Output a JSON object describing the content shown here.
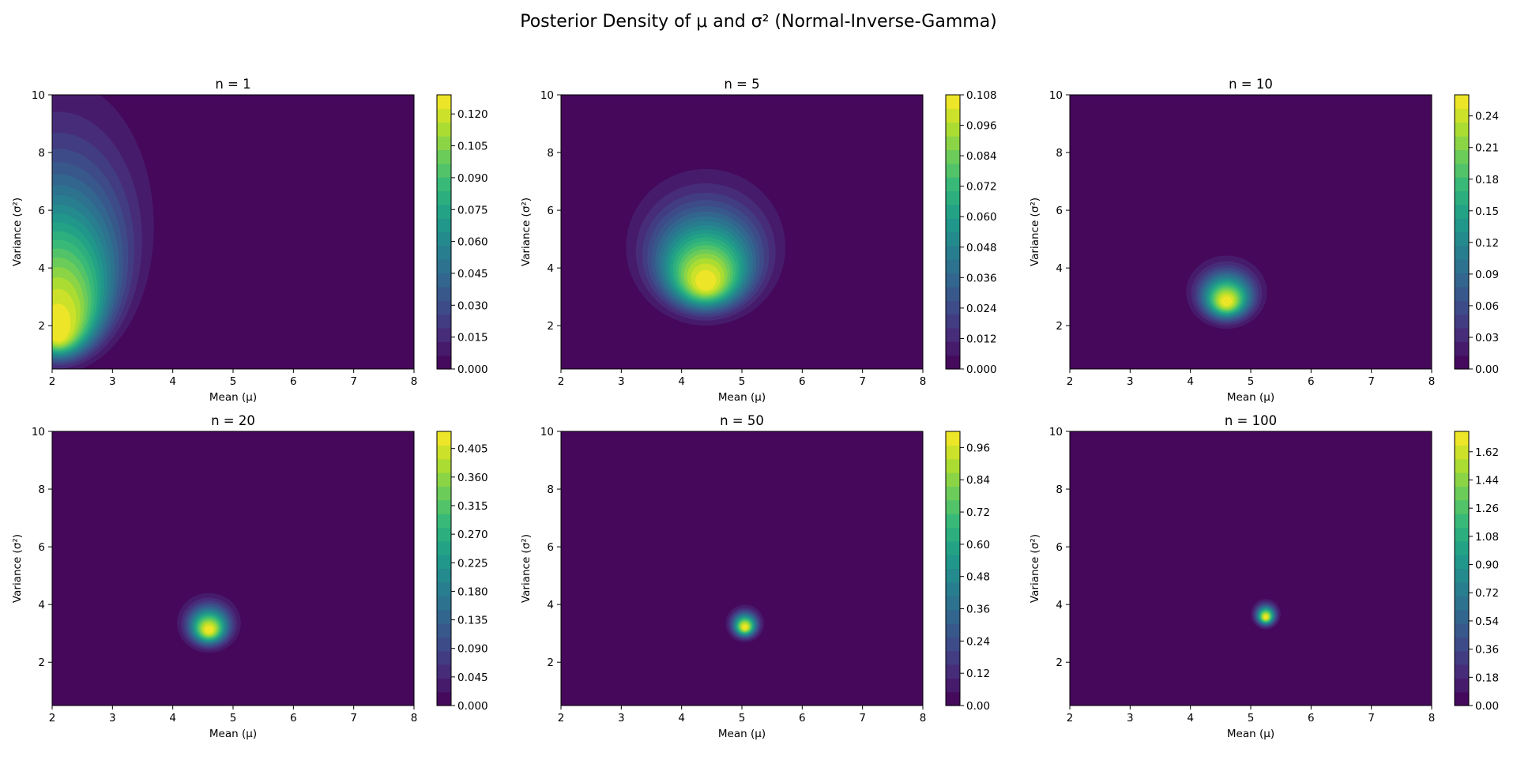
{
  "figure": {
    "title": "Posterior Density of μ and σ² (Normal-Inverse-Gamma)"
  },
  "chart_data": [
    {
      "type": "heatmap",
      "title": "n = 1",
      "xlabel": "Mean (μ)",
      "ylabel": "Variance (σ²)",
      "xlim": [
        2,
        8
      ],
      "ylim": [
        0.5,
        10
      ],
      "xticks": [
        "2",
        "3",
        "4",
        "5",
        "6",
        "7",
        "8"
      ],
      "yticks": [
        "2",
        "4",
        "6",
        "8",
        "10"
      ],
      "peak": {
        "mu": 2.1,
        "sigma2": 1.6,
        "density": 0.129
      },
      "colorbar": {
        "min": 0.0,
        "max": 0.129,
        "ticks": [
          "0.000",
          "0.015",
          "0.030",
          "0.045",
          "0.060",
          "0.075",
          "0.090",
          "0.105",
          "0.120"
        ]
      }
    },
    {
      "type": "heatmap",
      "title": "n = 5",
      "xlabel": "Mean (μ)",
      "ylabel": "Variance (σ²)",
      "xlim": [
        2,
        8
      ],
      "ylim": [
        0.5,
        10
      ],
      "xticks": [
        "2",
        "3",
        "4",
        "5",
        "6",
        "7",
        "8"
      ],
      "yticks": [
        "2",
        "4",
        "6",
        "8",
        "10"
      ],
      "peak": {
        "mu": 4.4,
        "sigma2": 3.4,
        "density": 0.108
      },
      "colorbar": {
        "min": 0.0,
        "max": 0.108,
        "ticks": [
          "0.000",
          "0.012",
          "0.024",
          "0.036",
          "0.048",
          "0.060",
          "0.072",
          "0.084",
          "0.096",
          "0.108"
        ]
      }
    },
    {
      "type": "heatmap",
      "title": "n = 10",
      "xlabel": "Mean (μ)",
      "ylabel": "Variance (σ²)",
      "xlim": [
        2,
        8
      ],
      "ylim": [
        0.5,
        10
      ],
      "xticks": [
        "2",
        "3",
        "4",
        "5",
        "6",
        "7",
        "8"
      ],
      "yticks": [
        "2",
        "4",
        "6",
        "8",
        "10"
      ],
      "peak": {
        "mu": 4.6,
        "sigma2": 2.8,
        "density": 0.26
      },
      "colorbar": {
        "min": 0.0,
        "max": 0.26,
        "ticks": [
          "0.00",
          "0.03",
          "0.06",
          "0.09",
          "0.12",
          "0.15",
          "0.18",
          "0.21",
          "0.24"
        ]
      }
    },
    {
      "type": "heatmap",
      "title": "n = 20",
      "xlabel": "Mean (μ)",
      "ylabel": "Variance (σ²)",
      "xlim": [
        2,
        8
      ],
      "ylim": [
        0.5,
        10
      ],
      "xticks": [
        "2",
        "3",
        "4",
        "5",
        "6",
        "7",
        "8"
      ],
      "yticks": [
        "2",
        "4",
        "6",
        "8",
        "10"
      ],
      "peak": {
        "mu": 4.6,
        "sigma2": 3.1,
        "density": 0.432
      },
      "colorbar": {
        "min": 0.0,
        "max": 0.432,
        "ticks": [
          "0.000",
          "0.045",
          "0.090",
          "0.135",
          "0.180",
          "0.225",
          "0.270",
          "0.315",
          "0.360",
          "0.405"
        ]
      }
    },
    {
      "type": "heatmap",
      "title": "n = 50",
      "xlabel": "Mean (μ)",
      "ylabel": "Variance (σ²)",
      "xlim": [
        2,
        8
      ],
      "ylim": [
        0.5,
        10
      ],
      "xticks": [
        "2",
        "3",
        "4",
        "5",
        "6",
        "7",
        "8"
      ],
      "yticks": [
        "2",
        "4",
        "6",
        "8",
        "10"
      ],
      "peak": {
        "mu": 5.05,
        "sigma2": 3.2,
        "density": 1.02
      },
      "colorbar": {
        "min": 0.0,
        "max": 1.02,
        "ticks": [
          "0.00",
          "0.12",
          "0.24",
          "0.36",
          "0.48",
          "0.60",
          "0.72",
          "0.84",
          "0.96"
        ]
      }
    },
    {
      "type": "heatmap",
      "title": "n = 100",
      "xlabel": "Mean (μ)",
      "ylabel": "Variance (σ²)",
      "xlim": [
        2,
        8
      ],
      "ylim": [
        0.5,
        10
      ],
      "xticks": [
        "2",
        "3",
        "4",
        "5",
        "6",
        "7",
        "8"
      ],
      "yticks": [
        "2",
        "4",
        "6",
        "8",
        "10"
      ],
      "peak": {
        "mu": 5.25,
        "sigma2": 3.55,
        "density": 1.75
      },
      "colorbar": {
        "min": 0.0,
        "max": 1.75,
        "ticks": [
          "0.00",
          "0.18",
          "0.36",
          "0.54",
          "0.72",
          "0.90",
          "1.08",
          "1.26",
          "1.44",
          "1.62"
        ]
      }
    }
  ]
}
